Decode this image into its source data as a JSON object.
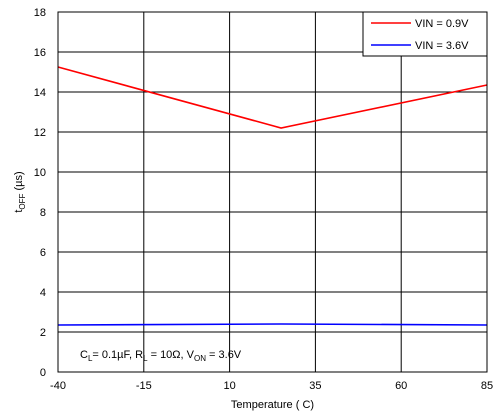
{
  "chart_data": {
    "type": "line",
    "xlabel": "Temperature (  C)",
    "ylabel_main": "t",
    "ylabel_sub": "OFF",
    "ylabel_unit": " (µs)",
    "xlim": [
      -40,
      85
    ],
    "ylim": [
      0,
      18
    ],
    "xticks": [
      -40,
      -15,
      10,
      35,
      60,
      85
    ],
    "yticks": [
      0,
      2,
      4,
      6,
      8,
      10,
      12,
      14,
      16,
      18
    ],
    "grid": true,
    "legend_position": "top-right",
    "series": [
      {
        "name": "VIN = 0.9V",
        "color": "#ff0000",
        "x": [
          -40,
          25,
          85
        ],
        "y": [
          15.25,
          12.2,
          14.35
        ]
      },
      {
        "name": "VIN = 3.6V",
        "color": "#0000ff",
        "x": [
          -40,
          25,
          85
        ],
        "y": [
          2.35,
          2.4,
          2.35
        ]
      }
    ],
    "annotation": {
      "parts": [
        {
          "t": "C",
          "sub": false
        },
        {
          "t": "L",
          "sub": true
        },
        {
          "t": "= 0.1µF, R",
          "sub": false
        },
        {
          "t": "L",
          "sub": true
        },
        {
          "t": " = 10Ω, V",
          "sub": false
        },
        {
          "t": "ON",
          "sub": true
        },
        {
          "t": " = 3.6V",
          "sub": false
        }
      ]
    }
  }
}
